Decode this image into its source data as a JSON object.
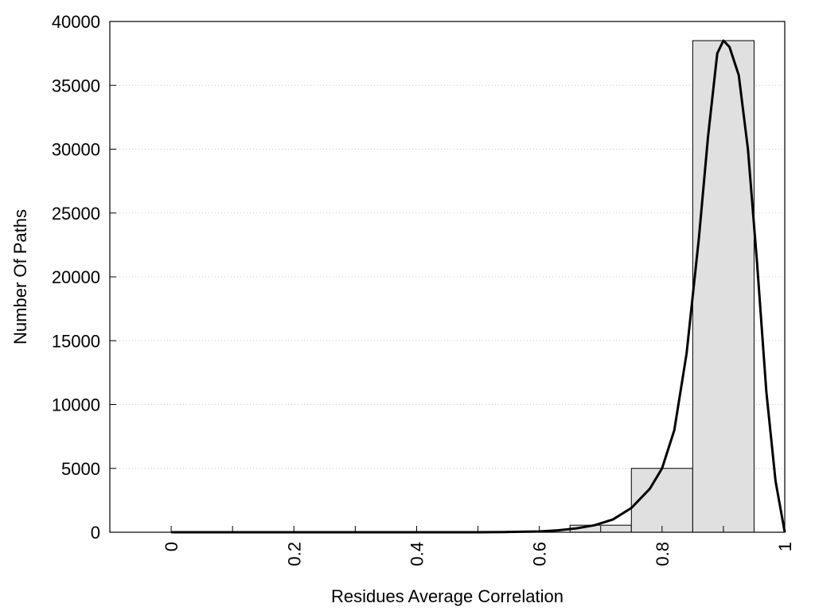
{
  "chart_data": {
    "type": "bar",
    "xlabel": "Residues Average Correlation",
    "ylabel": "Number Of Paths",
    "xlim": [
      -0.1,
      1.0
    ],
    "ylim": [
      0,
      40000
    ],
    "x_ticks": [
      0,
      0.2,
      0.4,
      0.6,
      0.8,
      1
    ],
    "x_tick_labels": [
      "0",
      "0.2",
      "0.4",
      "0.6",
      "0.8",
      "1"
    ],
    "x_minor_ticks": [
      0.1,
      0.3,
      0.5,
      0.7,
      0.9
    ],
    "y_ticks": [
      0,
      5000,
      10000,
      15000,
      20000,
      25000,
      30000,
      35000,
      40000
    ],
    "y_tick_labels": [
      "0",
      "5000",
      "10000",
      "15000",
      "20000",
      "25000",
      "30000",
      "35000",
      "40000"
    ],
    "grid": "horizontal dotted",
    "bins": [
      {
        "x0": 0.65,
        "x1": 0.75,
        "value": 550
      },
      {
        "x0": 0.75,
        "x1": 0.85,
        "value": 5000
      },
      {
        "x0": 0.85,
        "x1": 0.95,
        "value": 38500
      }
    ],
    "fit_curve": {
      "x": [
        0.0,
        0.1,
        0.2,
        0.3,
        0.4,
        0.5,
        0.55,
        0.6,
        0.63,
        0.66,
        0.69,
        0.72,
        0.75,
        0.78,
        0.8,
        0.82,
        0.84,
        0.86,
        0.875,
        0.89,
        0.9,
        0.91,
        0.925,
        0.94,
        0.955,
        0.97,
        0.985,
        1.0
      ],
      "y": [
        0,
        0,
        0,
        0,
        0,
        0,
        20,
        60,
        150,
        300,
        550,
        1000,
        1900,
        3400,
        5000,
        8000,
        14000,
        23000,
        31000,
        37500,
        38500,
        38000,
        35800,
        30000,
        21000,
        11000,
        4000,
        0
      ]
    },
    "colors": {
      "bar_fill": "#e0e0e0",
      "bar_stroke": "#000000",
      "curve": "#000000",
      "grid": "#c8c8c8"
    }
  }
}
